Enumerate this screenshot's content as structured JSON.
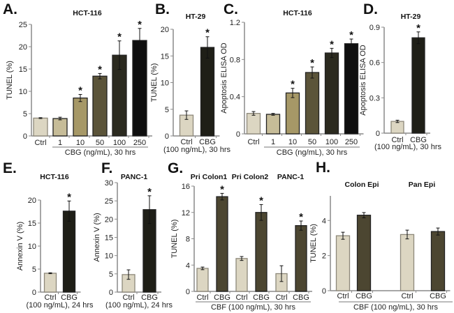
{
  "colors": {
    "ctrl": "#dcd6c2",
    "c1": "#c6bc98",
    "c10": "#a69867",
    "c50": "#5b5439",
    "c100": "#2b2a1f",
    "c250": "#0f0f0f",
    "cbg_dark": "#1f1f17",
    "cbg_olive": "#4c4631",
    "axis": "#8a8a8a",
    "bar_edge": "#222222"
  },
  "chart_data": [
    {
      "panel": "A.",
      "type": "bar",
      "title": "HCT-116",
      "ylabel": "TUNEL (%)",
      "xlabel": "CBG (ng/mL), 30 hrs",
      "ylim": [
        0,
        25
      ],
      "yticks": [
        "0",
        "5",
        "10",
        "15",
        "20",
        "25"
      ],
      "categories": [
        "Ctrl",
        "1",
        "10",
        "50",
        "100",
        "250"
      ],
      "values": [
        4.0,
        3.9,
        8.5,
        13.4,
        18.1,
        21.4
      ],
      "errors": [
        0.1,
        0.3,
        0.8,
        0.6,
        3.2,
        2.7
      ],
      "significant": [
        false,
        false,
        true,
        true,
        true,
        true
      ],
      "bar_colors": [
        "ctrl",
        "c1",
        "c10",
        "c50",
        "c100",
        "c250"
      ]
    },
    {
      "panel": "B.",
      "type": "bar",
      "title": "HT-29",
      "ylabel": "TUNEL (%)",
      "xlabel": "(100 ng/mL), 30 hrs",
      "ylim": [
        0,
        20
      ],
      "yticks": [
        "0",
        "5",
        "10",
        "15",
        "20"
      ],
      "categories": [
        "Ctrl",
        "CBG"
      ],
      "values": [
        3.9,
        16.6
      ],
      "errors": [
        0.8,
        2.0
      ],
      "significant": [
        false,
        true
      ],
      "bar_colors": [
        "ctrl",
        "cbg_dark"
      ]
    },
    {
      "panel": "C.",
      "type": "bar",
      "title": "HCT-116",
      "ylabel": "Apoptosis ELISA OD",
      "xlabel": "CBG (ng/mL), 30 hrs",
      "ylim": [
        0,
        1.2
      ],
      "yticks": [
        "0",
        "0.4",
        "0.8",
        "1.2"
      ],
      "categories": [
        "Ctrl",
        "1",
        "10",
        "50",
        "100",
        "250"
      ],
      "values": [
        0.22,
        0.21,
        0.44,
        0.66,
        0.87,
        0.97
      ],
      "errors": [
        0.02,
        0.01,
        0.05,
        0.06,
        0.05,
        0.05
      ],
      "significant": [
        false,
        false,
        true,
        true,
        true,
        true
      ],
      "bar_colors": [
        "ctrl",
        "c1",
        "c10",
        "c50",
        "c100",
        "c250"
      ]
    },
    {
      "panel": "D.",
      "type": "bar",
      "title": "HT-29",
      "ylabel": "Apoptosis ELISA OD",
      "xlabel": "(100 ng/mL), 30 hrs",
      "ylim": [
        0,
        0.9
      ],
      "yticks": [
        "0",
        "0.3",
        "0.6",
        "0.9"
      ],
      "categories": [
        "Ctrl",
        "CBG"
      ],
      "values": [
        0.1,
        0.81
      ],
      "errors": [
        0.01,
        0.05
      ],
      "significant": [
        false,
        true
      ],
      "bar_colors": [
        "ctrl",
        "cbg_dark"
      ]
    },
    {
      "panel": "E.",
      "type": "bar",
      "title": "HCT-116",
      "ylabel": "Annexin V (%)",
      "xlabel": "(100 ng/mL), 24 hrs",
      "ylim": [
        0,
        20
      ],
      "yticks": [
        "0",
        "5",
        "10",
        "15",
        "20"
      ],
      "categories": [
        "Ctrl",
        "CBG"
      ],
      "values": [
        4.1,
        17.6
      ],
      "errors": [
        0.1,
        2.2
      ],
      "significant": [
        false,
        true
      ],
      "bar_colors": [
        "ctrl",
        "cbg_dark"
      ]
    },
    {
      "panel": "F.",
      "type": "bar",
      "title": "PANC-1",
      "ylabel": "Annexin V (%)",
      "xlabel": "(100 ng/mL), 24 hrs",
      "ylim": [
        0,
        30
      ],
      "yticks": [
        "0",
        "5",
        "10",
        "15",
        "20",
        "25",
        "30"
      ],
      "categories": [
        "Ctrl",
        "CBG"
      ],
      "values": [
        4.8,
        22.6
      ],
      "errors": [
        1.3,
        3.8
      ],
      "significant": [
        false,
        true
      ],
      "bar_colors": [
        "ctrl",
        "cbg_dark"
      ]
    },
    {
      "panel": "G.",
      "type": "bar",
      "titles": [
        "Pri Colon1",
        "Pri Colon2",
        "PANC-1"
      ],
      "ylabel": "TUNEL (%)",
      "xlabel": "CBF (100 ng/mL), 30 hrs",
      "ylim": [
        0,
        16
      ],
      "yticks": [
        "0",
        "4",
        "8",
        "12",
        "16"
      ],
      "categories": [
        "Ctrl",
        "CBG",
        "Ctrl",
        "CBG",
        "Ctrl",
        "CBG"
      ],
      "values": [
        3.5,
        14.4,
        5.0,
        12.0,
        2.7,
        10.0
      ],
      "errors": [
        0.2,
        0.5,
        0.3,
        1.2,
        1.2,
        0.7
      ],
      "significant": [
        false,
        true,
        false,
        true,
        false,
        true
      ],
      "bar_colors": [
        "ctrl",
        "cbg_olive",
        "ctrl",
        "cbg_olive",
        "ctrl",
        "cbg_olive"
      ]
    },
    {
      "panel": "H.",
      "type": "bar",
      "titles": [
        "Colon Epi",
        "Pan Epi"
      ],
      "ylabel": "TUNEL (%)",
      "xlabel": "CBF (100 ng/mL), 30 hrs",
      "ylim": [
        0,
        5.4
      ],
      "yticks": [
        "0",
        "2",
        "4"
      ],
      "categories": [
        "Ctrl",
        "CBG",
        "Ctrl",
        "CBG"
      ],
      "values": [
        3.13,
        4.3,
        3.2,
        3.37
      ],
      "errors": [
        0.2,
        0.15,
        0.25,
        0.2
      ],
      "significant": [
        false,
        false,
        false,
        false
      ],
      "bar_colors": [
        "ctrl",
        "cbg_olive",
        "ctrl",
        "cbg_olive"
      ]
    }
  ]
}
